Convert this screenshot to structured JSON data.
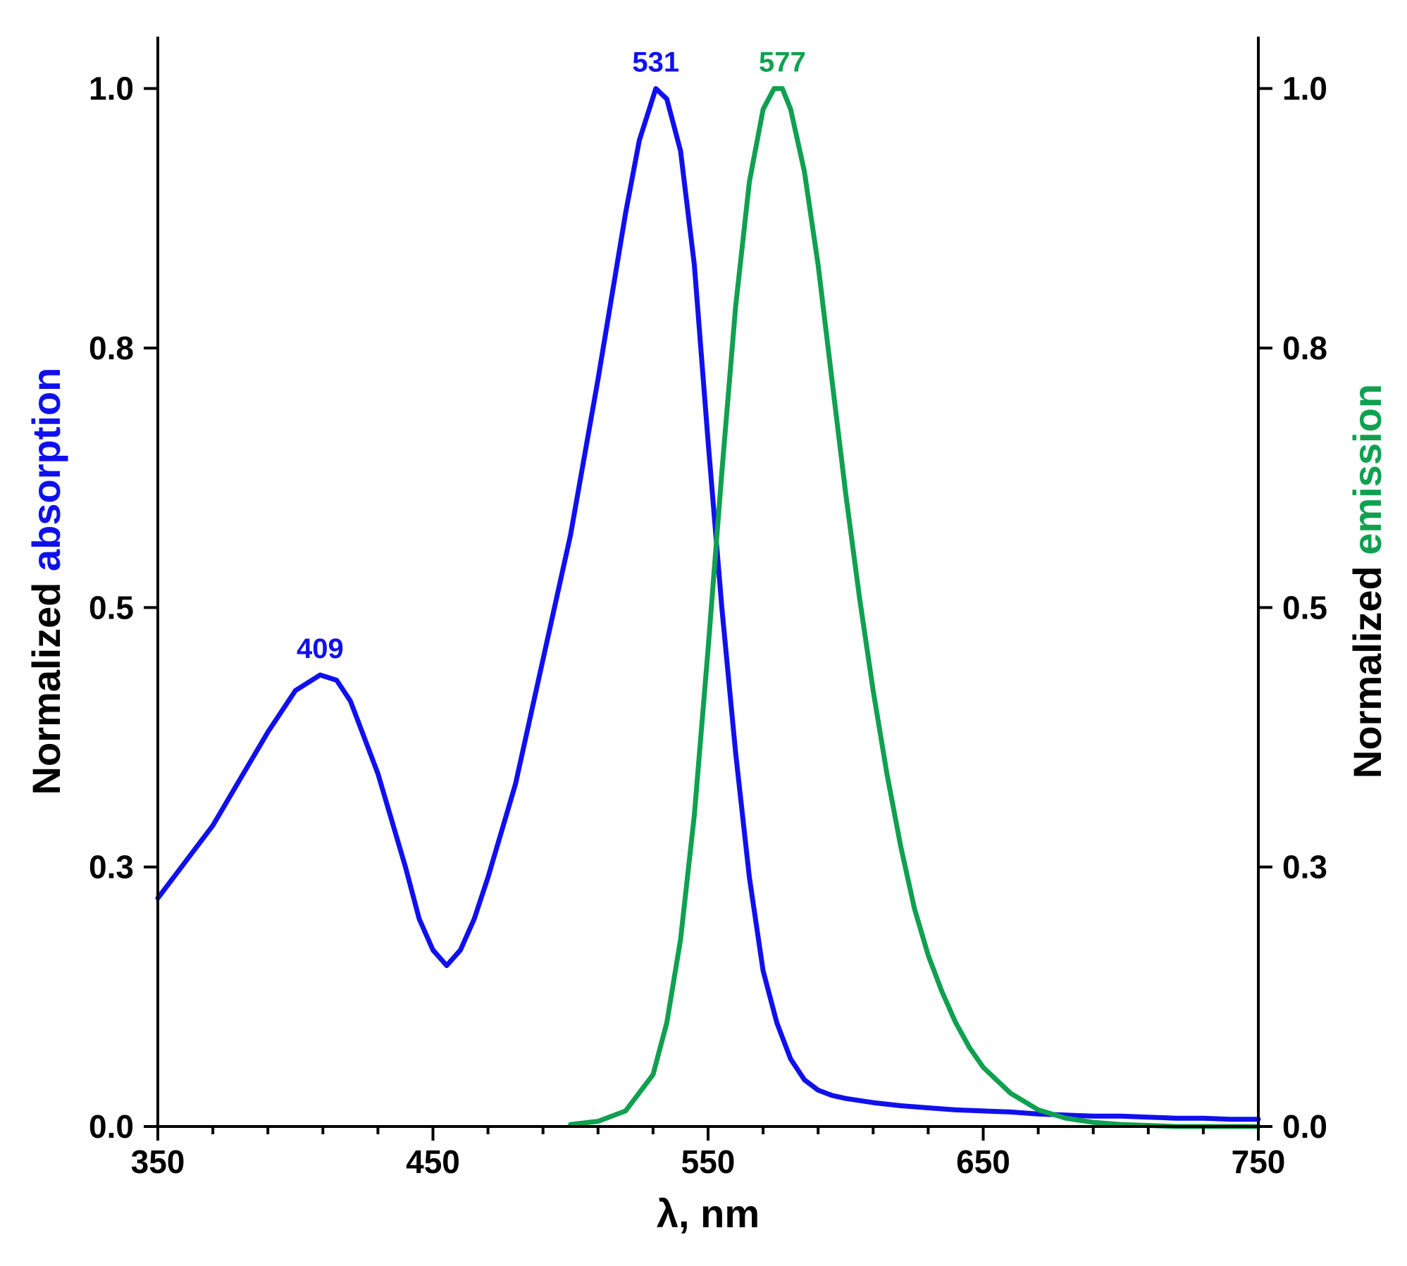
{
  "chart_data": {
    "type": "line",
    "xlabel": "λ, nm",
    "ylabel_left": {
      "prefix": "Normalized ",
      "highlight": "absorption"
    },
    "ylabel_right": {
      "prefix": "Normalized ",
      "highlight": "emission"
    },
    "xlim": [
      350,
      750
    ],
    "ylim": [
      0,
      1.05
    ],
    "x_ticks": [
      350,
      450,
      550,
      650,
      750
    ],
    "y_ticks": [
      {
        "value": 0.0,
        "label": "0.0"
      },
      {
        "value": 0.25,
        "label": "0.3"
      },
      {
        "value": 0.5,
        "label": "0.5"
      },
      {
        "value": 0.75,
        "label": "0.8"
      },
      {
        "value": 1.0,
        "label": "1.0"
      }
    ],
    "grid": false,
    "colors": {
      "absorption": "#1010ee",
      "emission": "#10a050",
      "axis": "#000000"
    },
    "series": [
      {
        "key": "absorption",
        "x": [
          350,
          360,
          370,
          380,
          390,
          400,
          409,
          415,
          420,
          430,
          440,
          445,
          450,
          455,
          460,
          465,
          470,
          480,
          490,
          500,
          510,
          520,
          525,
          531,
          535,
          540,
          545,
          550,
          555,
          560,
          565,
          570,
          575,
          580,
          585,
          590,
          595,
          600,
          610,
          620,
          630,
          640,
          650,
          660,
          670,
          680,
          690,
          700,
          710,
          720,
          730,
          740,
          750
        ],
        "y": [
          0.22,
          0.255,
          0.29,
          0.335,
          0.38,
          0.42,
          0.435,
          0.43,
          0.41,
          0.34,
          0.25,
          0.2,
          0.17,
          0.155,
          0.17,
          0.2,
          0.24,
          0.33,
          0.45,
          0.57,
          0.72,
          0.88,
          0.95,
          1.0,
          0.99,
          0.94,
          0.83,
          0.66,
          0.5,
          0.36,
          0.24,
          0.15,
          0.1,
          0.065,
          0.045,
          0.035,
          0.03,
          0.027,
          0.023,
          0.02,
          0.018,
          0.016,
          0.015,
          0.014,
          0.012,
          0.011,
          0.01,
          0.01,
          0.009,
          0.008,
          0.008,
          0.007,
          0.007
        ]
      },
      {
        "key": "emission",
        "x": [
          500,
          510,
          520,
          530,
          535,
          540,
          545,
          550,
          555,
          560,
          565,
          570,
          574,
          577,
          580,
          585,
          590,
          595,
          600,
          605,
          610,
          615,
          620,
          625,
          630,
          635,
          640,
          645,
          650,
          660,
          670,
          680,
          690,
          700,
          710,
          720,
          730,
          740,
          750
        ],
        "y": [
          0.002,
          0.005,
          0.015,
          0.05,
          0.1,
          0.18,
          0.3,
          0.46,
          0.63,
          0.79,
          0.91,
          0.98,
          1.0,
          1.0,
          0.98,
          0.92,
          0.83,
          0.72,
          0.61,
          0.51,
          0.42,
          0.34,
          0.27,
          0.21,
          0.165,
          0.13,
          0.1,
          0.076,
          0.057,
          0.032,
          0.016,
          0.008,
          0.004,
          0.002,
          0.001,
          0.0,
          0.0,
          0.0,
          0.0
        ]
      }
    ],
    "annotations": [
      {
        "text": "409",
        "x": 409,
        "y": 0.435,
        "series": "absorption"
      },
      {
        "text": "531",
        "x": 531,
        "y": 1.0,
        "series": "absorption"
      },
      {
        "text": "577",
        "x": 577,
        "y": 1.0,
        "series": "emission"
      }
    ]
  }
}
